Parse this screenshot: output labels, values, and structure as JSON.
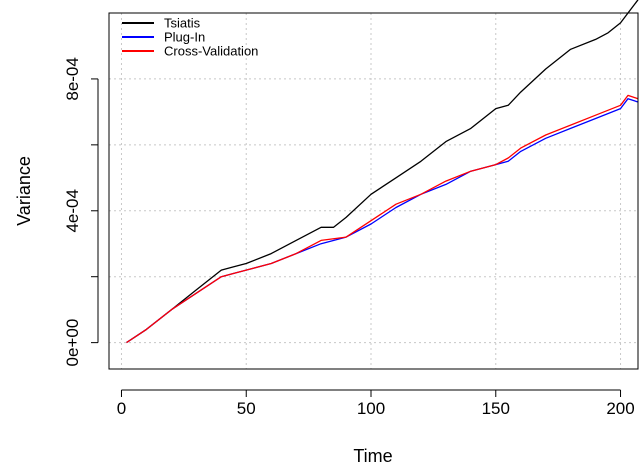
{
  "chart_data": {
    "type": "line",
    "xlabel": "Time",
    "ylabel": "Variance",
    "xlim": [
      -5,
      207
    ],
    "ylim": [
      -8e-05,
      0.001
    ],
    "x_ticks": [
      0,
      50,
      100,
      150,
      200
    ],
    "x_tick_labels": [
      "0",
      "50",
      "100",
      "150",
      "200"
    ],
    "y_ticks": [
      0,
      0.0002,
      0.0004,
      0.0006,
      0.0008
    ],
    "y_tick_labels": [
      "0e+00",
      "4e-04",
      "8e-04"
    ],
    "y_labeled_ticks": [
      0,
      0.0004,
      0.0008
    ],
    "grid": true,
    "legend_position": "top-left",
    "series": [
      {
        "name": "Tsiatis",
        "color": "#000000",
        "x": [
          2,
          10,
          20,
          30,
          40,
          45,
          50,
          60,
          70,
          80,
          85,
          90,
          100,
          110,
          120,
          130,
          140,
          150,
          155,
          160,
          170,
          180,
          190,
          195,
          200,
          207
        ],
        "y": [
          0.0,
          4e-05,
          0.0001,
          0.00016,
          0.00022,
          0.00023,
          0.00024,
          0.00027,
          0.00031,
          0.00035,
          0.00035,
          0.00038,
          0.00045,
          0.0005,
          0.00055,
          0.00061,
          0.00065,
          0.00071,
          0.00072,
          0.00076,
          0.00083,
          0.00089,
          0.00092,
          0.00094,
          0.00097,
          0.00104
        ]
      },
      {
        "name": "Plug-In",
        "color": "#0000ff",
        "x": [
          2,
          10,
          20,
          30,
          40,
          45,
          50,
          60,
          70,
          80,
          90,
          100,
          110,
          120,
          130,
          140,
          150,
          155,
          160,
          170,
          180,
          190,
          200,
          203,
          207
        ],
        "y": [
          0.0,
          4e-05,
          0.0001,
          0.00015,
          0.0002,
          0.00021,
          0.00022,
          0.00024,
          0.00027,
          0.0003,
          0.00032,
          0.00036,
          0.00041,
          0.00045,
          0.00048,
          0.00052,
          0.00054,
          0.00055,
          0.00058,
          0.00062,
          0.00065,
          0.00068,
          0.00071,
          0.00074,
          0.00073
        ]
      },
      {
        "name": "Cross-Validation",
        "color": "#ff0000",
        "x": [
          2,
          10,
          20,
          30,
          40,
          45,
          50,
          60,
          70,
          80,
          90,
          100,
          110,
          120,
          130,
          140,
          150,
          155,
          160,
          170,
          180,
          190,
          200,
          203,
          207
        ],
        "y": [
          0.0,
          4e-05,
          0.0001,
          0.00015,
          0.0002,
          0.00021,
          0.00022,
          0.00024,
          0.00027,
          0.00031,
          0.00032,
          0.00037,
          0.00042,
          0.00045,
          0.00049,
          0.00052,
          0.00054,
          0.00056,
          0.00059,
          0.00063,
          0.00066,
          0.00069,
          0.00072,
          0.00075,
          0.00074
        ]
      }
    ]
  }
}
